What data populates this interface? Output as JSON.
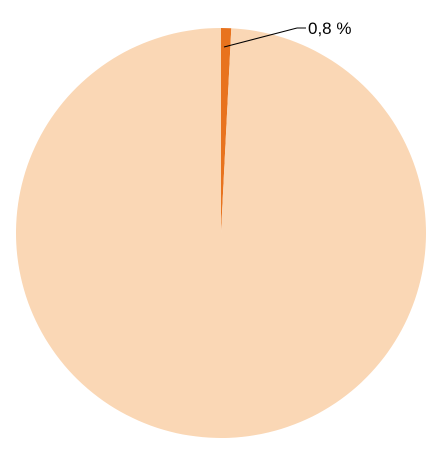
{
  "chart_data": {
    "type": "pie",
    "title": "",
    "slices": [
      {
        "label": "",
        "value": 0.8,
        "color": "#E8731E"
      },
      {
        "label": "",
        "value": 99.2,
        "color": "#FAD7B5"
      }
    ],
    "data_labels": [
      "0,8 %"
    ],
    "legend": "none",
    "start_angle_deg": 0,
    "direction": "clockwise"
  }
}
